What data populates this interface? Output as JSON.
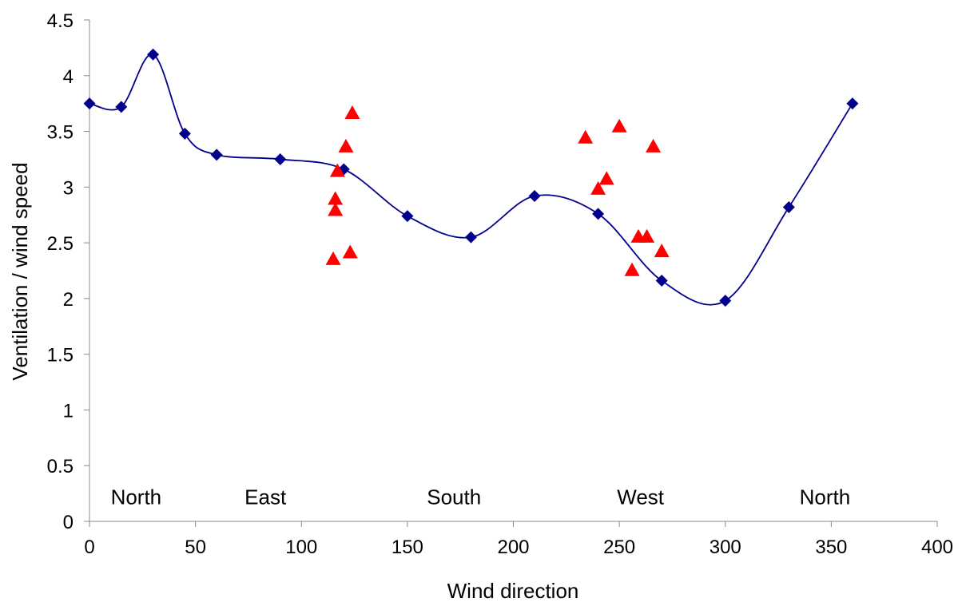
{
  "chart_data": {
    "type": "scatter",
    "title": "",
    "xlabel": "Wind direction",
    "ylabel": "Ventilation / wind speed",
    "xlim": [
      0,
      400
    ],
    "ylim": [
      0,
      4.5
    ],
    "xticks": [
      "0",
      "50",
      "100",
      "150",
      "200",
      "250",
      "300",
      "350",
      "400"
    ],
    "yticks": [
      "0",
      "0.5",
      "1",
      "1.5",
      "2",
      "2.5",
      "3",
      "3.5",
      "4",
      "4.5"
    ],
    "grid": false,
    "legend": "none",
    "annotations": [
      {
        "text": "North",
        "x": 22
      },
      {
        "text": "East",
        "x": 83
      },
      {
        "text": "South",
        "x": 172
      },
      {
        "text": "West",
        "x": 260
      },
      {
        "text": "North",
        "x": 347
      }
    ],
    "annotation_y": 0.22,
    "series": [
      {
        "marker": "diamond",
        "color": "#00008B",
        "line": "smooth",
        "x": [
          0,
          15,
          30,
          45,
          60,
          90,
          120,
          150,
          180,
          210,
          240,
          270,
          300,
          330,
          360
        ],
        "y": [
          3.75,
          3.72,
          4.19,
          3.48,
          3.29,
          3.25,
          3.16,
          2.74,
          2.55,
          2.92,
          2.76,
          2.16,
          1.98,
          2.82,
          3.75
        ]
      },
      {
        "marker": "triangle",
        "color": "#FF0000",
        "line": "none",
        "x": [
          115,
          116,
          116,
          117,
          121,
          123,
          124,
          234,
          240,
          244,
          250,
          256,
          259,
          263,
          266,
          270
        ],
        "y": [
          2.35,
          2.79,
          2.89,
          3.14,
          3.36,
          2.41,
          3.66,
          3.44,
          2.98,
          3.07,
          3.54,
          2.25,
          2.55,
          2.55,
          3.36,
          2.42
        ]
      }
    ]
  }
}
